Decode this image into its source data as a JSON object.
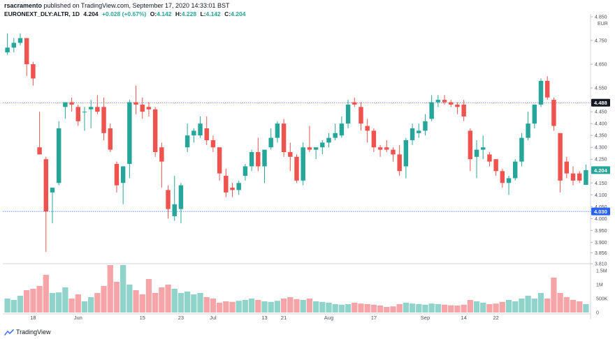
{
  "header": {
    "publisher": "rsacramento",
    "published_text": "published on TradingView.com, September 17, 2020 14:33:01 BST",
    "symbol": "EURONEXT_DLY:ALTR, 1D",
    "last": "4.204",
    "change": "+0.028 (+0.67%)",
    "open_label": "O:",
    "open": "4.142",
    "high_label": "H:",
    "high": "4.228",
    "low_label": "L:",
    "low": "4.142",
    "close_label": "C:",
    "close": "4.204"
  },
  "footer": {
    "brand": "TradingView"
  },
  "colors": {
    "up": "#26a69a",
    "down": "#ef5350",
    "up_vol": "#8fd3cb",
    "down_vol": "#f5a5a7",
    "price_tag_green": "#26a69a",
    "price_tag_blue": "#2962ff",
    "price_tag_dark": "#131722",
    "grid": "#f0f3fa"
  },
  "chart_data": {
    "type": "candlestick",
    "currency": "EUR",
    "price_axis_ticks": [
      "4.850",
      "4.750",
      "4.650",
      "4.550",
      "4.450",
      "4.400",
      "4.350",
      "4.300",
      "4.250",
      "4.200",
      "4.150",
      "4.100",
      "4.050",
      "4.000",
      "3.950",
      "3.900",
      "3.856",
      "3.810"
    ],
    "ylim": [
      3.81,
      4.85
    ],
    "volume_axis_ticks": [
      "1.5M",
      "1M",
      "500K",
      "0"
    ],
    "volume_max": 1600000,
    "x_tick_labels": [
      {
        "label": "18",
        "index": 4
      },
      {
        "label": "Jun",
        "index": 11
      },
      {
        "label": "15",
        "index": 21
      },
      {
        "label": "23",
        "index": 27
      },
      {
        "label": "Jul",
        "index": 32
      },
      {
        "label": "13",
        "index": 40
      },
      {
        "label": "21",
        "index": 43
      },
      {
        "label": "Aug",
        "index": 50
      },
      {
        "label": "17",
        "index": 57
      },
      {
        "label": "Sep",
        "index": 65
      },
      {
        "label": "14",
        "index": 71
      },
      {
        "label": "22",
        "index": 76
      }
    ],
    "price_tags": [
      {
        "value": "4.488",
        "price": 4.488,
        "style": "dark"
      },
      {
        "value": "4.204",
        "price": 4.204,
        "style": "green"
      },
      {
        "value": "4.030",
        "price": 4.03,
        "style": "blue"
      }
    ],
    "reference_lines": [
      4.488,
      4.03
    ],
    "candles": [
      {
        "o": 4.7,
        "h": 4.78,
        "l": 4.69,
        "c": 4.72,
        "v": 500000
      },
      {
        "o": 4.72,
        "h": 4.76,
        "l": 4.7,
        "c": 4.74,
        "v": 450000
      },
      {
        "o": 4.74,
        "h": 4.78,
        "l": 4.73,
        "c": 4.76,
        "v": 600000
      },
      {
        "o": 4.76,
        "h": 4.76,
        "l": 4.6,
        "c": 4.65,
        "v": 800000
      },
      {
        "o": 4.65,
        "h": 4.66,
        "l": 4.56,
        "c": 4.59,
        "v": 850000
      },
      {
        "o": 4.3,
        "h": 4.45,
        "l": 4.27,
        "c": 4.27,
        "v": 950000
      },
      {
        "o": 4.25,
        "h": 4.26,
        "l": 3.86,
        "c": 4.03,
        "v": 1350000
      },
      {
        "o": 4.11,
        "h": 4.13,
        "l": 3.98,
        "c": 4.13,
        "v": 700000
      },
      {
        "o": 4.15,
        "h": 4.41,
        "l": 4.14,
        "c": 4.38,
        "v": 720000
      },
      {
        "o": 4.47,
        "h": 4.49,
        "l": 4.42,
        "c": 4.49,
        "v": 900000
      },
      {
        "o": 4.49,
        "h": 4.51,
        "l": 4.45,
        "c": 4.48,
        "v": 500000
      },
      {
        "o": 4.47,
        "h": 4.48,
        "l": 4.39,
        "c": 4.41,
        "v": 650000
      },
      {
        "o": 4.45,
        "h": 4.47,
        "l": 4.37,
        "c": 4.45,
        "v": 400000
      },
      {
        "o": 4.46,
        "h": 4.5,
        "l": 4.38,
        "c": 4.47,
        "v": 550000
      },
      {
        "o": 4.47,
        "h": 4.52,
        "l": 4.44,
        "c": 4.45,
        "v": 700000
      },
      {
        "o": 4.47,
        "h": 4.51,
        "l": 4.33,
        "c": 4.36,
        "v": 950000
      },
      {
        "o": 4.38,
        "h": 4.4,
        "l": 4.28,
        "c": 4.29,
        "v": 1700000
      },
      {
        "o": 4.23,
        "h": 4.24,
        "l": 4.11,
        "c": 4.14,
        "v": 1100000
      },
      {
        "o": 4.15,
        "h": 4.22,
        "l": 4.06,
        "c": 4.22,
        "v": 1700000
      },
      {
        "o": 4.23,
        "h": 4.5,
        "l": 4.17,
        "c": 4.49,
        "v": 1000000
      },
      {
        "o": 4.49,
        "h": 4.56,
        "l": 4.44,
        "c": 4.48,
        "v": 800000
      },
      {
        "o": 4.48,
        "h": 4.51,
        "l": 4.42,
        "c": 4.45,
        "v": 650000
      },
      {
        "o": 4.47,
        "h": 4.49,
        "l": 4.43,
        "c": 4.46,
        "v": 1200000
      },
      {
        "o": 4.46,
        "h": 4.47,
        "l": 4.26,
        "c": 4.28,
        "v": 700000
      },
      {
        "o": 4.3,
        "h": 4.32,
        "l": 4.13,
        "c": 4.24,
        "v": 900000
      },
      {
        "o": 4.12,
        "h": 4.14,
        "l": 4.0,
        "c": 4.04,
        "v": 1000000
      },
      {
        "o": 4.01,
        "h": 4.18,
        "l": 3.99,
        "c": 4.06,
        "v": 850000
      },
      {
        "o": 4.04,
        "h": 4.15,
        "l": 3.98,
        "c": 4.14,
        "v": 700000
      },
      {
        "o": 4.3,
        "h": 4.4,
        "l": 4.28,
        "c": 4.35,
        "v": 750000
      },
      {
        "o": 4.35,
        "h": 4.38,
        "l": 4.32,
        "c": 4.37,
        "v": 650000
      },
      {
        "o": 4.35,
        "h": 4.43,
        "l": 4.34,
        "c": 4.4,
        "v": 700000
      },
      {
        "o": 4.38,
        "h": 4.43,
        "l": 4.31,
        "c": 4.33,
        "v": 550000
      },
      {
        "o": 4.33,
        "h": 4.35,
        "l": 4.28,
        "c": 4.3,
        "v": 500000
      },
      {
        "o": 4.3,
        "h": 4.3,
        "l": 4.16,
        "c": 4.19,
        "v": 350000
      },
      {
        "o": 4.18,
        "h": 4.21,
        "l": 4.09,
        "c": 4.11,
        "v": 400000
      },
      {
        "o": 4.13,
        "h": 4.15,
        "l": 4.09,
        "c": 4.12,
        "v": 380000
      },
      {
        "o": 4.12,
        "h": 4.16,
        "l": 4.1,
        "c": 4.15,
        "v": 420000
      },
      {
        "o": 4.18,
        "h": 4.23,
        "l": 4.16,
        "c": 4.22,
        "v": 450000
      },
      {
        "o": 4.22,
        "h": 4.29,
        "l": 4.2,
        "c": 4.28,
        "v": 500000
      },
      {
        "o": 4.28,
        "h": 4.34,
        "l": 4.2,
        "c": 4.22,
        "v": 450000
      },
      {
        "o": 4.22,
        "h": 4.29,
        "l": 4.15,
        "c": 4.29,
        "v": 400000
      },
      {
        "o": 4.3,
        "h": 4.38,
        "l": 4.29,
        "c": 4.34,
        "v": 380000
      },
      {
        "o": 4.34,
        "h": 4.41,
        "l": 4.32,
        "c": 4.4,
        "v": 420000
      },
      {
        "o": 4.4,
        "h": 4.42,
        "l": 4.26,
        "c": 4.28,
        "v": 500000
      },
      {
        "o": 4.28,
        "h": 4.32,
        "l": 4.2,
        "c": 4.26,
        "v": 550000
      },
      {
        "o": 4.26,
        "h": 4.27,
        "l": 4.15,
        "c": 4.16,
        "v": 480000
      },
      {
        "o": 4.16,
        "h": 4.32,
        "l": 4.14,
        "c": 4.3,
        "v": 450000
      },
      {
        "o": 4.3,
        "h": 4.39,
        "l": 4.28,
        "c": 4.29,
        "v": 500000
      },
      {
        "o": 4.29,
        "h": 4.3,
        "l": 4.25,
        "c": 4.3,
        "v": 400000
      },
      {
        "o": 4.3,
        "h": 4.33,
        "l": 4.27,
        "c": 4.32,
        "v": 380000
      },
      {
        "o": 4.32,
        "h": 4.36,
        "l": 4.3,
        "c": 4.34,
        "v": 350000
      },
      {
        "o": 4.34,
        "h": 4.4,
        "l": 4.33,
        "c": 4.36,
        "v": 300000
      },
      {
        "o": 4.35,
        "h": 4.43,
        "l": 4.34,
        "c": 4.4,
        "v": 280000
      },
      {
        "o": 4.4,
        "h": 4.5,
        "l": 4.38,
        "c": 4.48,
        "v": 300000
      },
      {
        "o": 4.49,
        "h": 4.51,
        "l": 4.47,
        "c": 4.48,
        "v": 350000
      },
      {
        "o": 4.47,
        "h": 4.49,
        "l": 4.37,
        "c": 4.4,
        "v": 320000
      },
      {
        "o": 4.39,
        "h": 4.42,
        "l": 4.32,
        "c": 4.37,
        "v": 300000
      },
      {
        "o": 4.37,
        "h": 4.38,
        "l": 4.28,
        "c": 4.3,
        "v": 280000
      },
      {
        "o": 4.3,
        "h": 4.31,
        "l": 4.26,
        "c": 4.29,
        "v": 250000
      },
      {
        "o": 4.3,
        "h": 4.33,
        "l": 4.28,
        "c": 4.29,
        "v": 200000
      },
      {
        "o": 4.29,
        "h": 4.3,
        "l": 4.24,
        "c": 4.27,
        "v": 220000
      },
      {
        "o": 4.27,
        "h": 4.31,
        "l": 4.18,
        "c": 4.2,
        "v": 300000
      },
      {
        "o": 4.22,
        "h": 4.34,
        "l": 4.17,
        "c": 4.33,
        "v": 350000
      },
      {
        "o": 4.33,
        "h": 4.4,
        "l": 4.31,
        "c": 4.38,
        "v": 320000
      },
      {
        "o": 4.36,
        "h": 4.4,
        "l": 4.34,
        "c": 4.37,
        "v": 300000
      },
      {
        "o": 4.37,
        "h": 4.44,
        "l": 4.35,
        "c": 4.41,
        "v": 280000
      },
      {
        "o": 4.42,
        "h": 4.52,
        "l": 4.41,
        "c": 4.49,
        "v": 320000
      },
      {
        "o": 4.49,
        "h": 4.52,
        "l": 4.47,
        "c": 4.5,
        "v": 300000
      },
      {
        "o": 4.5,
        "h": 4.52,
        "l": 4.48,
        "c": 4.49,
        "v": 280000
      },
      {
        "o": 4.49,
        "h": 4.5,
        "l": 4.47,
        "c": 4.48,
        "v": 260000
      },
      {
        "o": 4.48,
        "h": 4.49,
        "l": 4.44,
        "c": 4.47,
        "v": 250000
      },
      {
        "o": 4.48,
        "h": 4.5,
        "l": 4.41,
        "c": 4.43,
        "v": 280000
      },
      {
        "o": 4.37,
        "h": 4.38,
        "l": 4.2,
        "c": 4.25,
        "v": 450000
      },
      {
        "o": 4.26,
        "h": 4.33,
        "l": 4.17,
        "c": 4.29,
        "v": 400000
      },
      {
        "o": 4.29,
        "h": 4.35,
        "l": 4.25,
        "c": 4.3,
        "v": 350000
      },
      {
        "o": 4.27,
        "h": 4.28,
        "l": 4.22,
        "c": 4.24,
        "v": 300000
      },
      {
        "o": 4.25,
        "h": 4.25,
        "l": 4.18,
        "c": 4.2,
        "v": 320000
      },
      {
        "o": 4.2,
        "h": 4.21,
        "l": 4.13,
        "c": 4.15,
        "v": 380000
      },
      {
        "o": 4.15,
        "h": 4.18,
        "l": 4.1,
        "c": 4.17,
        "v": 450000
      },
      {
        "o": 4.17,
        "h": 4.25,
        "l": 4.16,
        "c": 4.24,
        "v": 400000
      },
      {
        "o": 4.24,
        "h": 4.36,
        "l": 4.22,
        "c": 4.34,
        "v": 500000
      },
      {
        "o": 4.34,
        "h": 4.45,
        "l": 4.33,
        "c": 4.4,
        "v": 600000
      },
      {
        "o": 4.4,
        "h": 4.47,
        "l": 4.38,
        "c": 4.48,
        "v": 500000
      },
      {
        "o": 4.48,
        "h": 4.59,
        "l": 4.47,
        "c": 4.58,
        "v": 700000
      },
      {
        "o": 4.58,
        "h": 4.6,
        "l": 4.5,
        "c": 4.51,
        "v": 500000
      },
      {
        "o": 4.5,
        "h": 4.51,
        "l": 4.37,
        "c": 4.39,
        "v": 1250000
      },
      {
        "o": 4.36,
        "h": 4.36,
        "l": 4.11,
        "c": 4.16,
        "v": 700000
      },
      {
        "o": 4.24,
        "h": 4.26,
        "l": 4.17,
        "c": 4.19,
        "v": 550000
      },
      {
        "o": 4.19,
        "h": 4.22,
        "l": 4.14,
        "c": 4.16,
        "v": 450000
      },
      {
        "o": 4.19,
        "h": 4.2,
        "l": 4.15,
        "c": 4.16,
        "v": 400000
      },
      {
        "o": 4.142,
        "h": 4.228,
        "l": 4.142,
        "c": 4.204,
        "v": 300000
      }
    ]
  }
}
